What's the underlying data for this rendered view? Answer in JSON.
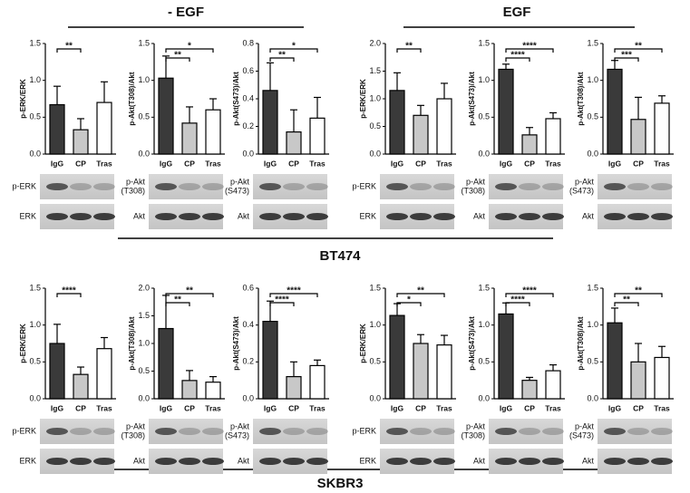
{
  "headers": {
    "left_condition": "- EGF",
    "right_condition": "EGF",
    "top_cell_line": "BT474",
    "bottom_cell_line": "SKBR3"
  },
  "chart_data": [
    {
      "type": "bar",
      "ylabel": "p-ERK/ERK",
      "categories": [
        "IgG",
        "CP",
        "Tras"
      ],
      "values": [
        0.67,
        0.33,
        0.7
      ],
      "errors": [
        0.25,
        0.15,
        0.28
      ],
      "colors": [
        "#3a3a3a",
        "#c8c8c8",
        "#ffffff"
      ],
      "ylim": [
        0,
        1.5
      ],
      "yticks": [
        {
          "value": 0,
          "label": "0.0"
        },
        {
          "value": 0.5,
          "label": "0.5"
        },
        {
          "value": 1,
          "label": "1.0"
        },
        {
          "value": 1.5,
          "label": "1.5"
        }
      ],
      "annotations": [
        {
          "text": "**",
          "between": [
            "IgG",
            "CP"
          ]
        }
      ],
      "blot_labels": [
        [
          "p-ERK"
        ],
        [
          "ERK"
        ]
      ]
    },
    {
      "type": "bar",
      "ylabel": "p-Akt(T308)/Akt",
      "categories": [
        "IgG",
        "CP",
        "Tras"
      ],
      "values": [
        1.03,
        0.42,
        0.6
      ],
      "errors": [
        0.3,
        0.22,
        0.15
      ],
      "colors": [
        "#3a3a3a",
        "#c8c8c8",
        "#ffffff"
      ],
      "ylim": [
        0,
        1.5
      ],
      "yticks": [
        {
          "value": 0,
          "label": "0.0"
        },
        {
          "value": 0.5,
          "label": "0.5"
        },
        {
          "value": 1,
          "label": "1.0"
        },
        {
          "value": 1.5,
          "label": "1.5"
        }
      ],
      "annotations": [
        {
          "text": "**",
          "between": [
            "IgG",
            "CP"
          ]
        },
        {
          "text": "*",
          "between": [
            "IgG",
            "Tras"
          ]
        }
      ],
      "blot_labels": [
        [
          "p-Akt",
          "(T308)"
        ],
        [
          "Akt"
        ]
      ]
    },
    {
      "type": "bar",
      "ylabel": "p-Akt(S473)/Akt",
      "categories": [
        "IgG",
        "CP",
        "Tras"
      ],
      "values": [
        0.46,
        0.16,
        0.26
      ],
      "errors": [
        0.2,
        0.16,
        0.15
      ],
      "colors": [
        "#3a3a3a",
        "#c8c8c8",
        "#ffffff"
      ],
      "ylim": [
        0,
        0.8
      ],
      "yticks": [
        {
          "value": 0,
          "label": "0.0"
        },
        {
          "value": 0.2,
          "label": "0.2"
        },
        {
          "value": 0.4,
          "label": "0.4"
        },
        {
          "value": 0.6,
          "label": "0.6"
        },
        {
          "value": 0.8,
          "label": "0.8"
        }
      ],
      "annotations": [
        {
          "text": "**",
          "between": [
            "IgG",
            "CP"
          ]
        },
        {
          "text": "*",
          "between": [
            "IgG",
            "Tras"
          ]
        }
      ],
      "blot_labels": [
        [
          "p-Akt",
          "(S473)"
        ],
        [
          "Akt"
        ]
      ]
    },
    {
      "type": "bar",
      "ylabel": "p-ERK/ERK",
      "categories": [
        "IgG",
        "CP",
        "Tras"
      ],
      "values": [
        1.15,
        0.7,
        1.0
      ],
      "errors": [
        0.32,
        0.18,
        0.28
      ],
      "colors": [
        "#3a3a3a",
        "#c8c8c8",
        "#ffffff"
      ],
      "ylim": [
        0,
        2
      ],
      "yticks": [
        {
          "value": 0,
          "label": "0.0"
        },
        {
          "value": 0.5,
          "label": "0.5"
        },
        {
          "value": 1,
          "label": "1.0"
        },
        {
          "value": 1.5,
          "label": "1.5"
        },
        {
          "value": 2,
          "label": "2.0"
        }
      ],
      "annotations": [
        {
          "text": "**",
          "between": [
            "IgG",
            "CP"
          ]
        }
      ],
      "blot_labels": [
        [
          "p-ERK"
        ],
        [
          "ERK"
        ]
      ]
    },
    {
      "type": "bar",
      "ylabel": "p-Akt(S473)/Akt",
      "categories": [
        "IgG",
        "CP",
        "Tras"
      ],
      "values": [
        1.15,
        0.26,
        0.48
      ],
      "errors": [
        0.07,
        0.1,
        0.08
      ],
      "colors": [
        "#3a3a3a",
        "#c8c8c8",
        "#ffffff"
      ],
      "ylim": [
        0,
        1.5
      ],
      "yticks": [
        {
          "value": 0,
          "label": "0.0"
        },
        {
          "value": 0.5,
          "label": "0.5"
        },
        {
          "value": 1,
          "label": "1.0"
        },
        {
          "value": 1.5,
          "label": "1.5"
        }
      ],
      "annotations": [
        {
          "text": "****",
          "between": [
            "IgG",
            "CP"
          ]
        },
        {
          "text": "****",
          "between": [
            "IgG",
            "Tras"
          ]
        }
      ],
      "blot_labels": [
        [
          "p-Akt",
          "(T308)"
        ],
        [
          "Akt"
        ]
      ]
    },
    {
      "type": "bar",
      "ylabel": "p-Akt(T308)/Akt",
      "categories": [
        "IgG",
        "CP",
        "Tras"
      ],
      "values": [
        1.15,
        0.47,
        0.69
      ],
      "errors": [
        0.12,
        0.3,
        0.1
      ],
      "colors": [
        "#3a3a3a",
        "#c8c8c8",
        "#ffffff"
      ],
      "ylim": [
        0,
        1.5
      ],
      "yticks": [
        {
          "value": 0,
          "label": "0.0"
        },
        {
          "value": 0.5,
          "label": "0.5"
        },
        {
          "value": 1,
          "label": "1.0"
        },
        {
          "value": 1.5,
          "label": "1.5"
        }
      ],
      "annotations": [
        {
          "text": "***",
          "between": [
            "IgG",
            "CP"
          ]
        },
        {
          "text": "**",
          "between": [
            "IgG",
            "Tras"
          ]
        }
      ],
      "blot_labels": [
        [
          "p-Akt",
          "(S473)"
        ],
        [
          "Akt"
        ]
      ]
    },
    {
      "type": "bar",
      "ylabel": "p-ERK/ERK",
      "categories": [
        "IgG",
        "CP",
        "Tras"
      ],
      "values": [
        0.75,
        0.33,
        0.68
      ],
      "errors": [
        0.26,
        0.1,
        0.15
      ],
      "colors": [
        "#3a3a3a",
        "#c8c8c8",
        "#ffffff"
      ],
      "ylim": [
        0,
        1.5
      ],
      "yticks": [
        {
          "value": 0,
          "label": "0.0"
        },
        {
          "value": 0.5,
          "label": "0.5"
        },
        {
          "value": 1,
          "label": "1.0"
        },
        {
          "value": 1.5,
          "label": "1.5"
        }
      ],
      "annotations": [
        {
          "text": "****",
          "between": [
            "IgG",
            "CP"
          ]
        }
      ],
      "blot_labels": [
        [
          "p-ERK"
        ],
        [
          "ERK"
        ]
      ]
    },
    {
      "type": "bar",
      "ylabel": "p-Akt(T308)/Akt",
      "categories": [
        "IgG",
        "CP",
        "Tras"
      ],
      "values": [
        1.27,
        0.33,
        0.3
      ],
      "errors": [
        0.6,
        0.18,
        0.1
      ],
      "colors": [
        "#3a3a3a",
        "#c8c8c8",
        "#ffffff"
      ],
      "ylim": [
        0,
        2
      ],
      "yticks": [
        {
          "value": 0,
          "label": "0.0"
        },
        {
          "value": 0.5,
          "label": "0.5"
        },
        {
          "value": 1,
          "label": "1.0"
        },
        {
          "value": 1.5,
          "label": "1.5"
        },
        {
          "value": 2,
          "label": "2.0"
        }
      ],
      "annotations": [
        {
          "text": "**",
          "between": [
            "IgG",
            "CP"
          ]
        },
        {
          "text": "**",
          "between": [
            "IgG",
            "Tras"
          ]
        }
      ],
      "blot_labels": [
        [
          "p-Akt",
          "(T308)"
        ],
        [
          "Akt"
        ]
      ]
    },
    {
      "type": "bar",
      "ylabel": "p-Akt(S473)/Akt",
      "categories": [
        "IgG",
        "CP",
        "Tras"
      ],
      "values": [
        0.42,
        0.12,
        0.18
      ],
      "errors": [
        0.11,
        0.08,
        0.03
      ],
      "colors": [
        "#3a3a3a",
        "#c8c8c8",
        "#ffffff"
      ],
      "ylim": [
        0,
        0.6
      ],
      "yticks": [
        {
          "value": 0,
          "label": "0.0"
        },
        {
          "value": 0.2,
          "label": "0.2"
        },
        {
          "value": 0.4,
          "label": "0.4"
        },
        {
          "value": 0.6,
          "label": "0.6"
        }
      ],
      "annotations": [
        {
          "text": "****",
          "between": [
            "IgG",
            "CP"
          ]
        },
        {
          "text": "****",
          "between": [
            "IgG",
            "Tras"
          ]
        }
      ],
      "blot_labels": [
        [
          "p-Akt",
          "(S473)"
        ],
        [
          "Akt"
        ]
      ]
    },
    {
      "type": "bar",
      "ylabel": "p-ERK/ERK",
      "categories": [
        "IgG",
        "CP",
        "Tras"
      ],
      "values": [
        1.13,
        0.75,
        0.73
      ],
      "errors": [
        0.16,
        0.12,
        0.13
      ],
      "colors": [
        "#3a3a3a",
        "#c8c8c8",
        "#ffffff"
      ],
      "ylim": [
        0,
        1.5
      ],
      "yticks": [
        {
          "value": 0,
          "label": "0.0"
        },
        {
          "value": 0.5,
          "label": "0.5"
        },
        {
          "value": 1,
          "label": "1.0"
        },
        {
          "value": 1.5,
          "label": "1.5"
        }
      ],
      "annotations": [
        {
          "text": "*",
          "between": [
            "IgG",
            "CP"
          ]
        },
        {
          "text": "**",
          "between": [
            "IgG",
            "Tras"
          ]
        }
      ],
      "blot_labels": [
        [
          "p-ERK"
        ],
        [
          "ERK"
        ]
      ]
    },
    {
      "type": "bar",
      "ylabel": "p-Akt(S473)/Akt",
      "categories": [
        "IgG",
        "CP",
        "Tras"
      ],
      "values": [
        1.15,
        0.25,
        0.38
      ],
      "errors": [
        0.15,
        0.04,
        0.08
      ],
      "colors": [
        "#3a3a3a",
        "#c8c8c8",
        "#ffffff"
      ],
      "ylim": [
        0,
        1.5
      ],
      "yticks": [
        {
          "value": 0,
          "label": "0.0"
        },
        {
          "value": 0.5,
          "label": "0.5"
        },
        {
          "value": 1,
          "label": "1.0"
        },
        {
          "value": 1.5,
          "label": "1.5"
        }
      ],
      "annotations": [
        {
          "text": "****",
          "between": [
            "IgG",
            "CP"
          ]
        },
        {
          "text": "****",
          "between": [
            "IgG",
            "Tras"
          ]
        }
      ],
      "blot_labels": [
        [
          "p-Akt",
          "(T308)"
        ],
        [
          "Akt"
        ]
      ]
    },
    {
      "type": "bar",
      "ylabel": "p-Akt(T308)/Akt",
      "categories": [
        "IgG",
        "CP",
        "Tras"
      ],
      "values": [
        1.03,
        0.5,
        0.56
      ],
      "errors": [
        0.2,
        0.25,
        0.15
      ],
      "colors": [
        "#3a3a3a",
        "#c8c8c8",
        "#ffffff"
      ],
      "ylim": [
        0,
        1.5
      ],
      "yticks": [
        {
          "value": 0,
          "label": "0.0"
        },
        {
          "value": 0.5,
          "label": "0.5"
        },
        {
          "value": 1,
          "label": "1.0"
        },
        {
          "value": 1.5,
          "label": "1.5"
        }
      ],
      "annotations": [
        {
          "text": "**",
          "between": [
            "IgG",
            "CP"
          ]
        },
        {
          "text": "**",
          "between": [
            "IgG",
            "Tras"
          ]
        }
      ],
      "blot_labels": [
        [
          "p-Akt",
          "(S473)"
        ],
        [
          "Akt"
        ]
      ]
    }
  ]
}
